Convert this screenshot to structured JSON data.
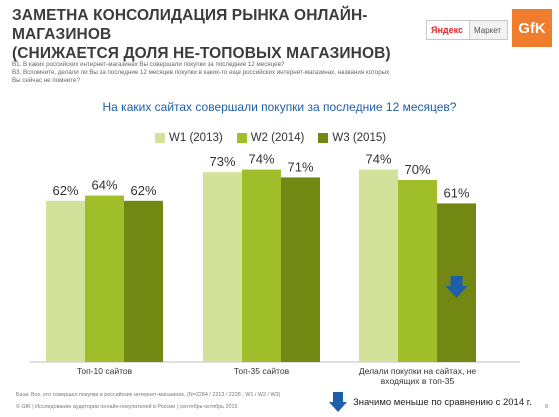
{
  "header": {
    "title_line1": "Заметна консолидация рынка онлайн-магазинов",
    "title_line2": "(снижается доля не-топовых магазинов)"
  },
  "logos": {
    "yandex_name": "Яндекс",
    "yandex_market": "Маркет",
    "gfk": "GfK"
  },
  "questions": {
    "q1": "В1. В каких российских интернет-магазинах Вы совершали покупки за последние 12 месяцев?",
    "q3": "В3. Вспомните, делали ли Вы за последние 12 месяцев покупки в каких-то еще российских интернет-магазинах, названия которых",
    "q3b": "Вы сейчас не помните?"
  },
  "chart_data": {
    "type": "bar",
    "title": "На каких сайтах совершали покупки за последние 12 месяцев?",
    "categories": [
      "Топ-10 сайтов",
      "Топ-35 сайтов",
      "Делали покупки на сайтах, не входящих в топ-35"
    ],
    "category_lines": [
      [
        "Топ-10 сайтов"
      ],
      [
        "Топ-35 сайтов"
      ],
      [
        "Делали покупки на сайтах, не",
        "входящих в топ-35"
      ]
    ],
    "series": [
      {
        "name": "W1 (2013)",
        "values": [
          62,
          73,
          74
        ],
        "labels": [
          "62%",
          "73%",
          "74%"
        ],
        "color": "#d3e29a"
      },
      {
        "name": "W2 (2014)",
        "values": [
          64,
          74,
          70
        ],
        "labels": [
          "64%",
          "74%",
          "70%"
        ],
        "color": "#9fbe2a"
      },
      {
        "name": "W3 (2015)",
        "values": [
          62,
          71,
          61
        ],
        "labels": [
          "62%",
          "71%",
          "61%"
        ],
        "color": "#728813"
      }
    ],
    "ylim": [
      0,
      100
    ],
    "legend_position": "top",
    "grid": false,
    "significance_marker": {
      "category_index": 2,
      "series_index": 2,
      "icon": "down-arrow-icon",
      "color": "#1f5fa8"
    }
  },
  "footnote": "База: Все, кто совершал покупки в российских интернет-магазинах, (N=2284 / 2213 / 2228 ; W1 / W2 / W3)",
  "footer": "© GfK | Исследование аудитории онлайн-покупателей в России | сентябрь-октябрь 2015",
  "page_number": "8",
  "significance_note": "Значимо меньше по сравнению с 2014 г."
}
